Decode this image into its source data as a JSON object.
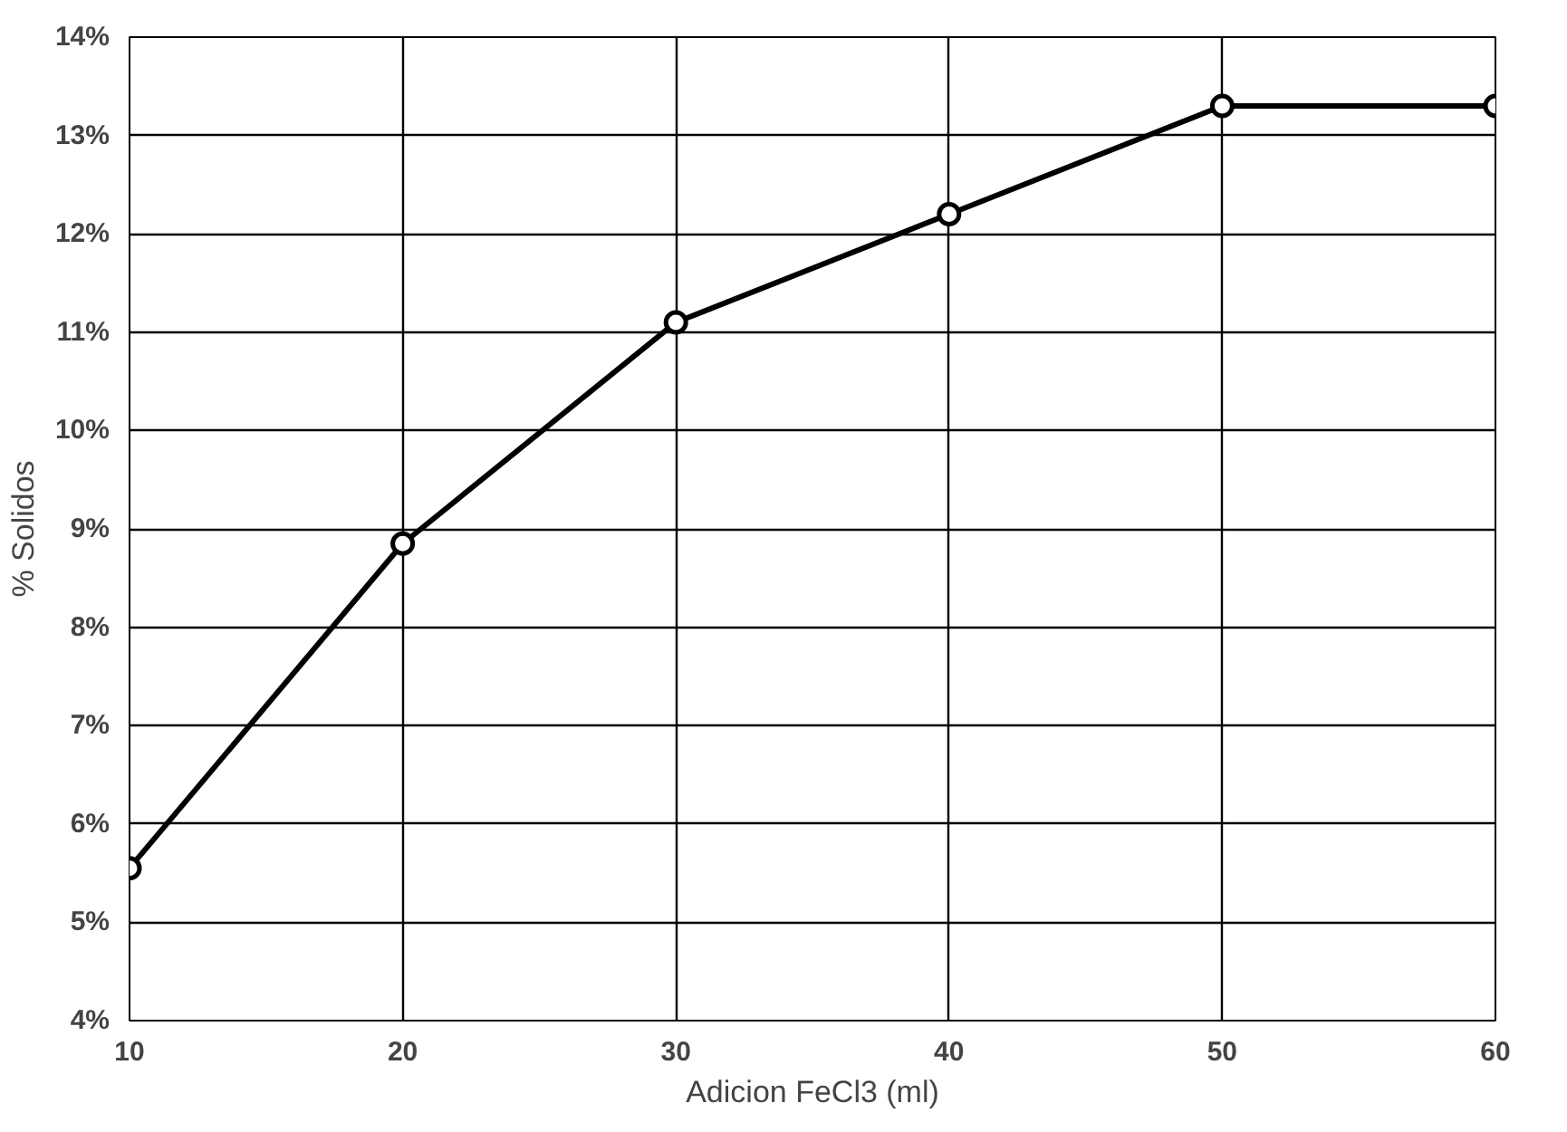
{
  "chart_data": {
    "type": "line",
    "xlabel": "Adicion FeCl3 (ml)",
    "ylabel": "% Solidos",
    "x": [
      10,
      20,
      30,
      40,
      50,
      60
    ],
    "series": [
      {
        "color": "#000000",
        "values": [
          5.55,
          8.85,
          11.1,
          12.2,
          13.3,
          13.3
        ]
      }
    ],
    "xlim": [
      10,
      60
    ],
    "xticks": [
      10,
      20,
      30,
      40,
      50,
      60
    ],
    "ylim": [
      4,
      14
    ],
    "yticks": [
      {
        "value": 4,
        "label": "4%"
      },
      {
        "value": 5,
        "label": "5%"
      },
      {
        "value": 6,
        "label": "6%"
      },
      {
        "value": 7,
        "label": "7%"
      },
      {
        "value": 8,
        "label": "8%"
      },
      {
        "value": 9,
        "label": "9%"
      },
      {
        "value": 10,
        "label": "10%"
      },
      {
        "value": 11,
        "label": "11%"
      },
      {
        "value": 12,
        "label": "12%"
      },
      {
        "value": 13,
        "label": "13%"
      },
      {
        "value": 14,
        "label": "14%"
      }
    ],
    "grid": true,
    "marker": "circle",
    "line_style": "solid"
  }
}
